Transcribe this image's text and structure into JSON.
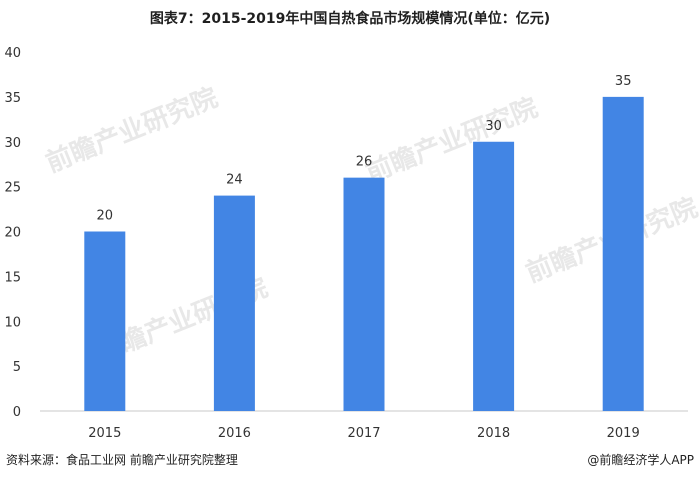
{
  "title": "图表7：2015-2019年中国自热食品市场规模情况(单位：亿元)",
  "footer": {
    "source": "资料来源：食品工业网 前瞻产业研究院整理",
    "brand": "@前瞻经济学人APP"
  },
  "watermark": "前瞻产业研究院",
  "colors": {
    "bar": "#4285e4",
    "axis": "#c8c8c8",
    "text": "#333333"
  },
  "chart_data": {
    "type": "bar",
    "categories": [
      "2015",
      "2016",
      "2017",
      "2018",
      "2019"
    ],
    "values": [
      20,
      24,
      26,
      30,
      35
    ],
    "title": "图表7：2015-2019年中国自热食品市场规模情况(单位：亿元)",
    "xlabel": "",
    "ylabel": "",
    "ylim": [
      0,
      40
    ],
    "yticks": [
      0,
      5,
      10,
      15,
      20,
      25,
      30,
      35,
      40
    ],
    "grid": false,
    "data_labels": true
  }
}
